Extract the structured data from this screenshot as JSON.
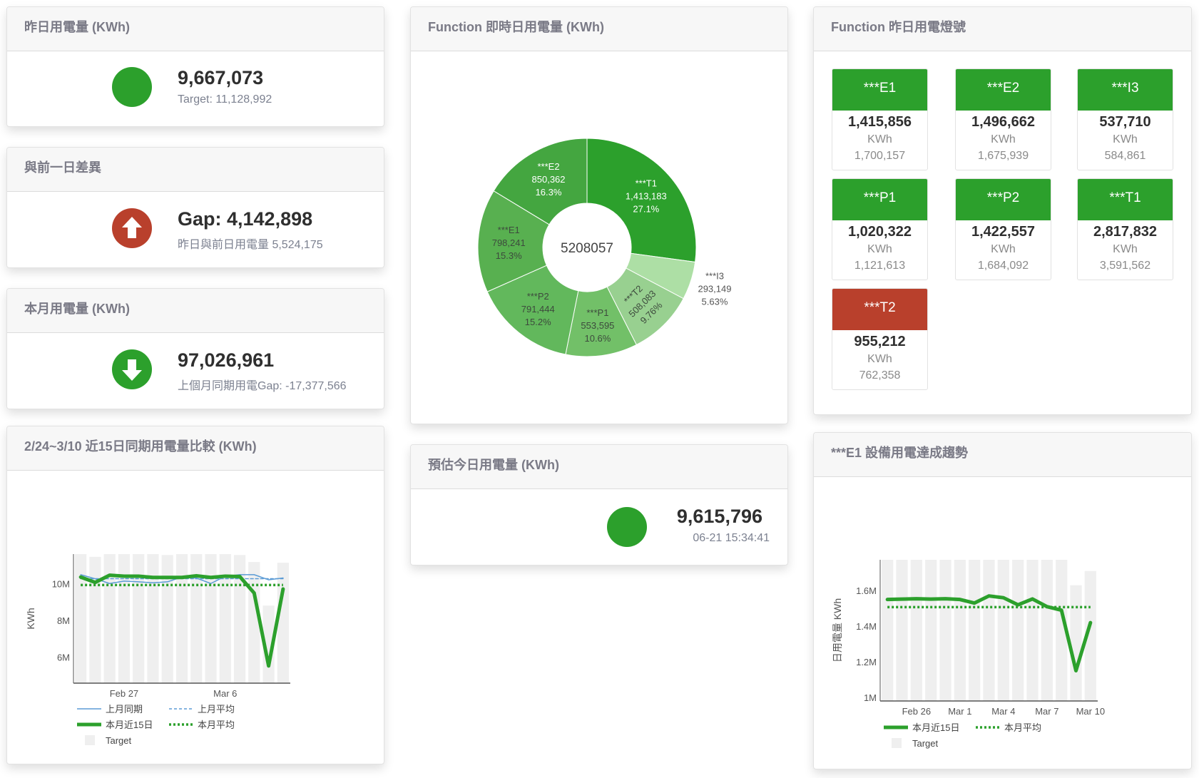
{
  "colors": {
    "green": "#2ca02c",
    "red": "#b9402c",
    "blue": "#5b9bd5",
    "target_gray": "#efefef"
  },
  "yesterday": {
    "title": "昨日用電量 (KWh)",
    "value": "9,667,073",
    "sub": "Target: 11,128,992",
    "status": "green",
    "icon": "status-dot-icon"
  },
  "gap": {
    "title": "與前一日差異",
    "value": "Gap: 4,142,898",
    "sub": "昨日與前日用電量 5,524,175",
    "status": "red",
    "icon": "arrow-up-icon"
  },
  "month": {
    "title": "本月用電量 (KWh)",
    "value": "97,026,961",
    "sub": "上個月同期用電Gap: -17,377,566",
    "status": "green",
    "icon": "arrow-down-icon"
  },
  "compare": {
    "title": "2/24~3/10 近15日同期用電量比較 (KWh)"
  },
  "realtime": {
    "title": "Function 即時日用電量 (KWh)"
  },
  "estimate": {
    "title": "預估今日用電量 (KWh)",
    "value": "9,615,796",
    "timestamp": "06-21 15:34:41",
    "status": "green"
  },
  "lights": {
    "title": "Function 昨日用電燈號",
    "unit": "KWh",
    "items": [
      {
        "name": "***E1",
        "value": "1,415,856",
        "target": "1,700,157",
        "status": "green"
      },
      {
        "name": "***E2",
        "value": "1,496,662",
        "target": "1,675,939",
        "status": "green"
      },
      {
        "name": "***I3",
        "value": "537,710",
        "target": "584,861",
        "status": "green"
      },
      {
        "name": "***P1",
        "value": "1,020,322",
        "target": "1,121,613",
        "status": "green"
      },
      {
        "name": "***P2",
        "value": "1,422,557",
        "target": "1,684,092",
        "status": "green"
      },
      {
        "name": "***T1",
        "value": "2,817,832",
        "target": "3,591,562",
        "status": "green"
      },
      {
        "name": "***T2",
        "value": "955,212",
        "target": "762,358",
        "status": "red"
      }
    ]
  },
  "trend": {
    "title": "***E1 設備用電達成趨勢"
  },
  "chart_data": [
    {
      "type": "pie",
      "donut": true,
      "center_label": "5208057",
      "slices": [
        {
          "label": "***T1",
          "value": 1413183,
          "value_text": "1,413,183",
          "pct": "27.1%",
          "color": "#2ca02c"
        },
        {
          "label": "***I3",
          "value": 293149,
          "value_text": "293,149",
          "pct": "5.63%",
          "color": "#addfa5"
        },
        {
          "label": "***T2",
          "value": 508083,
          "value_text": "508,083",
          "pct": "9.76%",
          "color": "#98d090"
        },
        {
          "label": "***P1",
          "value": 553595,
          "value_text": "553,595",
          "pct": "10.6%",
          "color": "#72c068"
        },
        {
          "label": "***P2",
          "value": 791444,
          "value_text": "791,444",
          "pct": "15.2%",
          "color": "#62b85c"
        },
        {
          "label": "***E1",
          "value": 798241,
          "value_text": "798,241",
          "pct": "15.3%",
          "color": "#58b050"
        },
        {
          "label": "***E2",
          "value": 850362,
          "value_text": "850,362",
          "pct": "16.3%",
          "color": "#44a640"
        }
      ]
    },
    {
      "type": "line",
      "x": [
        "Feb 24",
        "Feb 25",
        "Feb 26",
        "Feb 27",
        "Feb 28",
        "Mar 1",
        "Mar 2",
        "Mar 3",
        "Mar 4",
        "Mar 5",
        "Mar 6",
        "Mar 7",
        "Mar 8",
        "Mar 9",
        "Mar 10"
      ],
      "x_tick_labels": [
        "",
        "",
        "",
        "Feb 27",
        "",
        "",
        "",
        "",
        "",
        "",
        "Mar 6",
        "",
        "",
        "",
        ""
      ],
      "ylabel": "KWh",
      "ylim": [
        4580000,
        11600000
      ],
      "y_ticks": [
        6000000,
        8000000,
        10000000
      ],
      "y_tick_labels": [
        "6M",
        "8M",
        "10M"
      ],
      "grid": false,
      "legend": "bottom",
      "bars": {
        "name": "Target",
        "values": [
          11600000,
          11450000,
          11600000,
          11600000,
          11600000,
          11600000,
          11550000,
          11600000,
          11600000,
          11600000,
          11600000,
          11550000,
          11170000,
          8800000,
          11130000
        ]
      },
      "series": [
        {
          "name": "上月同期",
          "style": "solid-thin",
          "color": "#5b9bd5",
          "values": [
            10480000,
            10260000,
            10000000,
            10130000,
            10090000,
            10040000,
            10090000,
            10350000,
            10300000,
            10000000,
            10390000,
            10480000,
            10480000,
            10200000,
            10300000
          ]
        },
        {
          "name": "上月平均",
          "style": "dashed",
          "color": "#5b9bd5",
          "values": [
            10260000,
            10260000,
            10260000,
            10260000,
            10260000,
            10260000,
            10260000,
            10260000,
            10260000,
            10260000,
            10260000,
            10260000,
            10260000,
            10260000,
            10260000
          ]
        },
        {
          "name": "本月近15日",
          "style": "solid-thick",
          "color": "#2ca02c",
          "values": [
            10350000,
            10060000,
            10450000,
            10400000,
            10400000,
            10330000,
            10330000,
            10330000,
            10420000,
            10330000,
            10400000,
            10380000,
            9480000,
            5520000,
            9700000
          ]
        },
        {
          "name": "本月平均",
          "style": "dotted",
          "color": "#2ca02c",
          "values": [
            9920000,
            9920000,
            9920000,
            9920000,
            9920000,
            9920000,
            9920000,
            9920000,
            9920000,
            9920000,
            9920000,
            9920000,
            9920000,
            9920000,
            9920000
          ]
        }
      ]
    },
    {
      "type": "line",
      "x": [
        "Feb 24",
        "Feb 25",
        "Feb 26",
        "Feb 27",
        "Feb 28",
        "Mar 1",
        "Mar 2",
        "Mar 3",
        "Mar 4",
        "Mar 5",
        "Mar 6",
        "Mar 7",
        "Mar 8",
        "Mar 9",
        "Mar 10"
      ],
      "x_tick_labels": [
        "",
        "",
        "Feb 26",
        "",
        "",
        "Mar 1",
        "",
        "",
        "Mar 4",
        "",
        "",
        "Mar 7",
        "",
        "",
        "Mar 10"
      ],
      "ylabel": "日用電量 KWh",
      "ylim": [
        980000,
        1773000
      ],
      "y_ticks": [
        1000000,
        1200000,
        1400000,
        1600000
      ],
      "y_tick_labels": [
        "1M",
        "1.2M",
        "1.4M",
        "1.6M"
      ],
      "grid": false,
      "legend": "bottom",
      "bars": {
        "name": "Target",
        "values": [
          1773000,
          1773000,
          1773000,
          1773000,
          1773000,
          1773000,
          1773000,
          1773000,
          1773000,
          1773000,
          1773000,
          1773000,
          1773000,
          1630000,
          1710000
        ]
      },
      "series": [
        {
          "name": "本月近15日",
          "style": "solid-thick",
          "color": "#2ca02c",
          "values": [
            1550000,
            1552000,
            1554000,
            1552000,
            1554000,
            1550000,
            1530000,
            1570000,
            1560000,
            1520000,
            1553000,
            1510000,
            1490000,
            1150000,
            1420000
          ]
        },
        {
          "name": "本月平均",
          "style": "dotted",
          "color": "#2ca02c",
          "values": [
            1507000,
            1507000,
            1507000,
            1507000,
            1507000,
            1507000,
            1507000,
            1507000,
            1507000,
            1507000,
            1507000,
            1507000,
            1507000,
            1507000,
            1507000
          ]
        }
      ]
    }
  ]
}
